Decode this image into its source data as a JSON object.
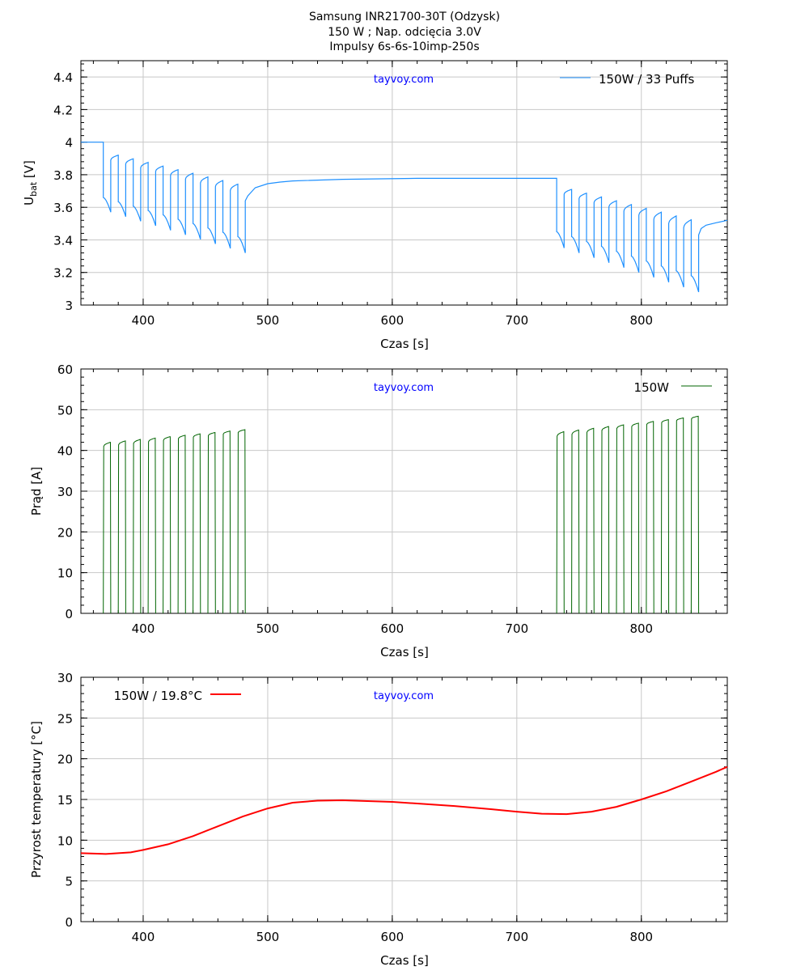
{
  "title": [
    "Samsung INR21700-30T (Odzysk)",
    "150 W  ;   Nap. odcięcia 3.0V",
    "Impulsy 6s-6s-10imp-250s"
  ],
  "watermark": "tayvoy.com",
  "colors": {
    "voltage": "#1e90ff",
    "current": "#006400",
    "temperature": "#ff0000",
    "grid": "#c8c8c8"
  },
  "chart_data": [
    {
      "type": "line",
      "xlabel": "Czas [s]",
      "ylabel": {
        "main": "U",
        "sub": "bat",
        "unit": " [V]"
      },
      "xlim": [
        350,
        869
      ],
      "ylim": [
        3,
        4.5
      ],
      "xticks": [
        400,
        500,
        600,
        700,
        800
      ],
      "yticks": [
        3,
        3.2,
        3.4,
        3.6,
        3.8,
        4,
        4.2,
        4.4
      ],
      "ytick_labels": [
        "3",
        "3.2",
        "3.4",
        "3.6",
        "3.8",
        "4",
        "4.2",
        "4.4"
      ],
      "legend": {
        "label": "150W / 33 Puffs",
        "placement": "top-right"
      },
      "rest_voltage": 4.0,
      "pulse_on_s": 6,
      "pulse_off_s": 6,
      "groups": [
        {
          "start": 368,
          "pulses": 10,
          "load_first": [
            3.66,
            3.57
          ],
          "load_last": [
            3.42,
            3.32
          ],
          "rec_first": [
            3.89,
            3.92
          ],
          "rec_last": [
            3.68,
            3.72
          ]
        },
        {
          "start": 732,
          "pulses": 10,
          "load_first": [
            3.45,
            3.35
          ],
          "load_last": [
            3.18,
            3.08
          ],
          "rec_first": [
            3.68,
            3.71
          ],
          "rec_last": [
            3.45,
            3.5
          ]
        }
      ],
      "rest_curve": {
        "t": [
          482,
          484,
          490,
          500,
          510,
          520,
          560,
          620,
          732
        ],
        "v": [
          3.64,
          3.67,
          3.72,
          3.745,
          3.755,
          3.762,
          3.772,
          3.778,
          3.778
        ]
      },
      "tail_curve": {
        "t": [
          846,
          848,
          852,
          860,
          869
        ],
        "v": [
          3.43,
          3.47,
          3.49,
          3.505,
          3.52
        ]
      }
    },
    {
      "type": "line",
      "xlabel": "Czas [s]",
      "ylabel": "Prąd [A]",
      "xlim": [
        350,
        869
      ],
      "ylim": [
        0,
        60
      ],
      "xticks": [
        400,
        500,
        600,
        700,
        800
      ],
      "yticks": [
        0,
        10,
        20,
        30,
        40,
        50,
        60
      ],
      "legend": {
        "label": "150W",
        "placement": "top-right"
      },
      "pulse_on_s": 6,
      "pulse_off_s": 6,
      "groups": [
        {
          "start": 368,
          "pulses": 10,
          "first": [
            41.0,
            42.0
          ],
          "last": [
            44.4,
            45.1
          ]
        },
        {
          "start": 732,
          "pulses": 10,
          "first": [
            43.5,
            44.6
          ],
          "last": [
            47.8,
            48.4
          ]
        }
      ]
    },
    {
      "type": "line",
      "xlabel": "Czas [s]",
      "ylabel": "Przyrost temperatury [°C]",
      "xlim": [
        350,
        869
      ],
      "ylim": [
        0,
        30
      ],
      "xticks": [
        400,
        500,
        600,
        700,
        800
      ],
      "yticks": [
        0,
        5,
        10,
        15,
        20,
        25,
        30
      ],
      "legend": {
        "label": "150W / 19.8°C",
        "placement": "top-left"
      },
      "x": [
        350,
        370,
        390,
        400,
        420,
        440,
        460,
        480,
        500,
        520,
        540,
        560,
        580,
        600,
        620,
        650,
        680,
        700,
        720,
        740,
        760,
        780,
        800,
        820,
        840,
        860,
        869
      ],
      "y": [
        8.4,
        8.3,
        8.5,
        8.8,
        9.5,
        10.5,
        11.7,
        12.9,
        13.9,
        14.6,
        14.85,
        14.9,
        14.8,
        14.7,
        14.5,
        14.2,
        13.8,
        13.5,
        13.25,
        13.2,
        13.5,
        14.1,
        15.0,
        16.0,
        17.2,
        18.4,
        19.0
      ]
    }
  ]
}
